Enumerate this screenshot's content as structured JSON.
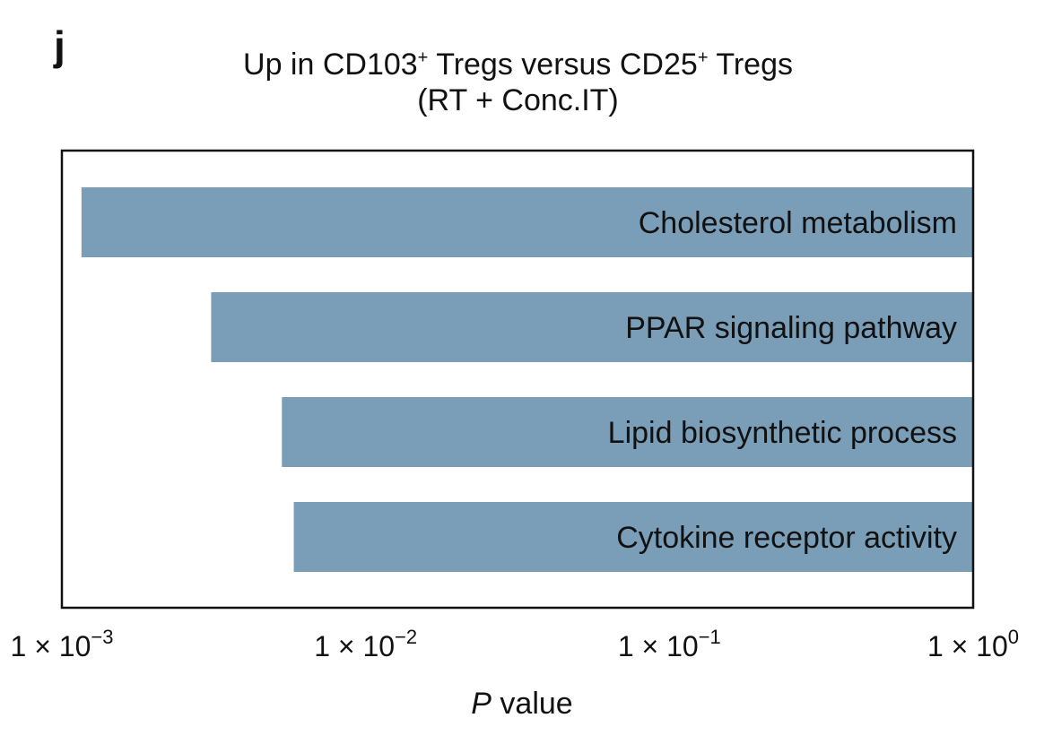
{
  "panel_letter": "j",
  "chart_data": {
    "type": "bar",
    "orientation": "horizontal",
    "title": {
      "line1_parts": [
        "Up in CD103",
        "+",
        " Tregs versus CD25",
        "+",
        " Tregs"
      ],
      "line2": "(RT + Conc.IT)"
    },
    "categories": [
      "Cholesterol metabolism",
      "PPAR signaling pathway",
      "Lipid biosynthetic process",
      "Cytokine receptor activity"
    ],
    "values": [
      0.00116,
      0.0031,
      0.0053,
      0.0058
    ],
    "xscale": "log",
    "xlim": [
      0.001,
      1
    ],
    "xticks": [
      {
        "value": 0.001,
        "mantissa": "1 × 10",
        "exp": "−3"
      },
      {
        "value": 0.01,
        "mantissa": "1 × 10",
        "exp": "−2"
      },
      {
        "value": 0.1,
        "mantissa": "1 × 10",
        "exp": "−1"
      },
      {
        "value": 1,
        "mantissa": "1 × 10",
        "exp": "0"
      }
    ],
    "xlabel_italic": "P",
    "xlabel_rest": " value",
    "ylabel": "",
    "grid": false,
    "bar_color": "#7a9eb7",
    "bar_label_position": "inside-right"
  }
}
